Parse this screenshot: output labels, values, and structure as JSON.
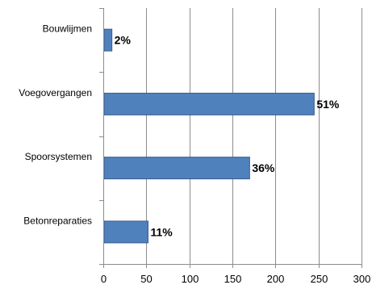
{
  "chart_data": {
    "type": "bar",
    "orientation": "horizontal",
    "categories": [
      "Bouwlijmen",
      "Voegovergangen",
      "Spoorsystemen",
      "Betonreparaties"
    ],
    "values": [
      10,
      245,
      170,
      52
    ],
    "data_labels": [
      "2%",
      "51%",
      "36%",
      "11%"
    ],
    "xlim": [
      0,
      300
    ],
    "xticks": [
      "0",
      "50",
      "100",
      "150",
      "200",
      "250",
      "300"
    ],
    "title": "",
    "xlabel": "",
    "ylabel": "",
    "grid": "vertical",
    "legend": "none",
    "bar_color": "#4f81bd",
    "bar_edge_color": "#385d8a",
    "grid_color": "#8c8c8c"
  }
}
